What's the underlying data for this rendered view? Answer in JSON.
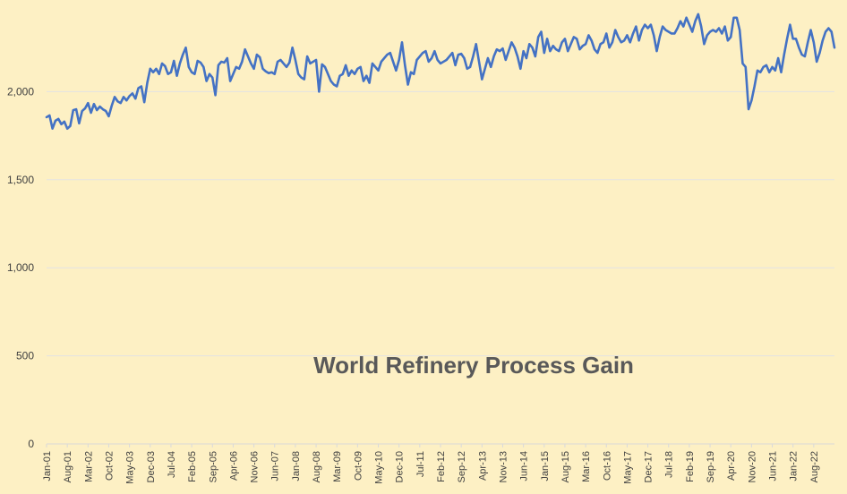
{
  "chart_data": {
    "type": "line",
    "title": "World Refinery Process Gain",
    "xlabel": "",
    "ylabel": "",
    "ylim": [
      0,
      2500
    ],
    "yticks": [
      0,
      500,
      1000,
      1500,
      2000
    ],
    "ytick_labels": [
      "0",
      "500",
      "1,000",
      "1,500",
      "2,000"
    ],
    "grid": "horizontal",
    "legend": "none",
    "colors": {
      "line": "#4472c4",
      "grid": "#e3e3e3",
      "background": "#fdf0c4",
      "axis": "#d9d9d9"
    },
    "xtick_labels": [
      "Jan-01",
      "Aug-01",
      "Mar-02",
      "Oct-02",
      "May-03",
      "Dec-03",
      "Jul-04",
      "Feb-05",
      "Sep-05",
      "Apr-06",
      "Nov-06",
      "Jun-07",
      "Jan-08",
      "Aug-08",
      "Mar-09",
      "Oct-09",
      "May-10",
      "Dec-10",
      "Jul-11",
      "Feb-12",
      "Sep-12",
      "Apr-13",
      "Nov-13",
      "Jun-14",
      "Jan-15",
      "Aug-15",
      "Mar-16",
      "Oct-16",
      "May-17",
      "Dec-17",
      "Jul-18",
      "Feb-19",
      "Sep-19",
      "Apr-20",
      "Nov-20",
      "Jun-21",
      "Jan-22",
      "Aug-22"
    ],
    "series": [
      {
        "start": "Jan-01",
        "frequency": "monthly",
        "values": [
          1855,
          1865,
          1790,
          1835,
          1845,
          1815,
          1830,
          1790,
          1805,
          1895,
          1900,
          1820,
          1890,
          1905,
          1935,
          1880,
          1930,
          1895,
          1915,
          1900,
          1890,
          1860,
          1920,
          1970,
          1945,
          1935,
          1970,
          1950,
          1975,
          1990,
          1960,
          2020,
          2030,
          1940,
          2050,
          2130,
          2110,
          2130,
          2100,
          2160,
          2145,
          2100,
          2110,
          2175,
          2090,
          2160,
          2210,
          2250,
          2140,
          2110,
          2100,
          2175,
          2165,
          2140,
          2060,
          2100,
          2080,
          1980,
          2150,
          2170,
          2165,
          2190,
          2060,
          2100,
          2140,
          2130,
          2170,
          2240,
          2200,
          2160,
          2130,
          2210,
          2195,
          2130,
          2115,
          2105,
          2110,
          2100,
          2170,
          2180,
          2160,
          2140,
          2165,
          2250,
          2180,
          2100,
          2080,
          2070,
          2200,
          2160,
          2170,
          2180,
          2000,
          2155,
          2140,
          2100,
          2060,
          2040,
          2030,
          2090,
          2100,
          2150,
          2090,
          2120,
          2100,
          2130,
          2140,
          2060,
          2090,
          2050,
          2160,
          2140,
          2120,
          2170,
          2190,
          2210,
          2220,
          2170,
          2120,
          2180,
          2280,
          2150,
          2040,
          2110,
          2100,
          2180,
          2200,
          2220,
          2230,
          2170,
          2190,
          2230,
          2180,
          2160,
          2170,
          2180,
          2200,
          2220,
          2150,
          2210,
          2215,
          2190,
          2130,
          2140,
          2200,
          2270,
          2170,
          2070,
          2130,
          2190,
          2140,
          2200,
          2240,
          2230,
          2245,
          2180,
          2230,
          2280,
          2250,
          2200,
          2130,
          2230,
          2190,
          2270,
          2250,
          2200,
          2310,
          2340,
          2220,
          2300,
          2230,
          2260,
          2240,
          2230,
          2280,
          2300,
          2230,
          2270,
          2310,
          2300,
          2240,
          2260,
          2270,
          2320,
          2290,
          2240,
          2220,
          2270,
          2280,
          2330,
          2250,
          2280,
          2350,
          2310,
          2280,
          2290,
          2320,
          2280,
          2330,
          2370,
          2290,
          2350,
          2380,
          2360,
          2380,
          2320,
          2230,
          2310,
          2370,
          2350,
          2340,
          2330,
          2330,
          2360,
          2400,
          2370,
          2420,
          2380,
          2340,
          2400,
          2440,
          2370,
          2270,
          2320,
          2340,
          2350,
          2340,
          2360,
          2330,
          2370,
          2290,
          2310,
          2420,
          2420,
          2350,
          2160,
          2140,
          1900,
          1950,
          2030,
          2120,
          2110,
          2140,
          2150,
          2110,
          2140,
          2120,
          2190,
          2110,
          2210,
          2300,
          2380,
          2300,
          2300,
          2250,
          2210,
          2200,
          2280,
          2350,
          2280,
          2170,
          2220,
          2290,
          2340,
          2360,
          2340,
          2250
        ]
      }
    ]
  }
}
